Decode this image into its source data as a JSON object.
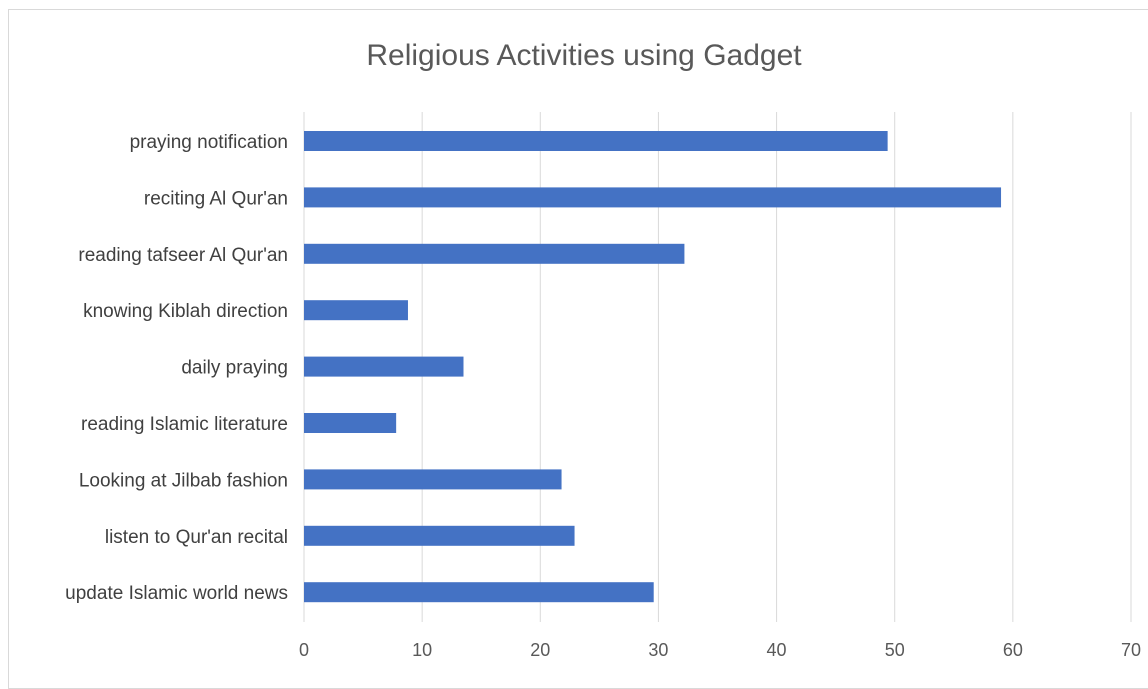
{
  "chart_data": {
    "type": "bar",
    "orientation": "horizontal",
    "title": "Religious Activities using Gadget",
    "xlabel": "",
    "ylabel": "",
    "categories": [
      "praying notification",
      "reciting Al Qur'an",
      "reading tafseer Al Qur'an",
      "knowing Kiblah direction",
      "daily praying",
      "reading Islamic literature",
      "Looking at Jilbab fashion",
      "listen to Qur'an recital",
      "update Islamic world news"
    ],
    "values": [
      49.4,
      59.0,
      32.2,
      8.8,
      13.5,
      7.8,
      21.8,
      22.9,
      29.6
    ],
    "xlim": [
      0,
      70
    ],
    "xticks": [
      0,
      10,
      20,
      30,
      40,
      50,
      60,
      70
    ],
    "grid": "vertical",
    "legend": "none",
    "colors": {
      "bar": "#4472c4"
    }
  }
}
